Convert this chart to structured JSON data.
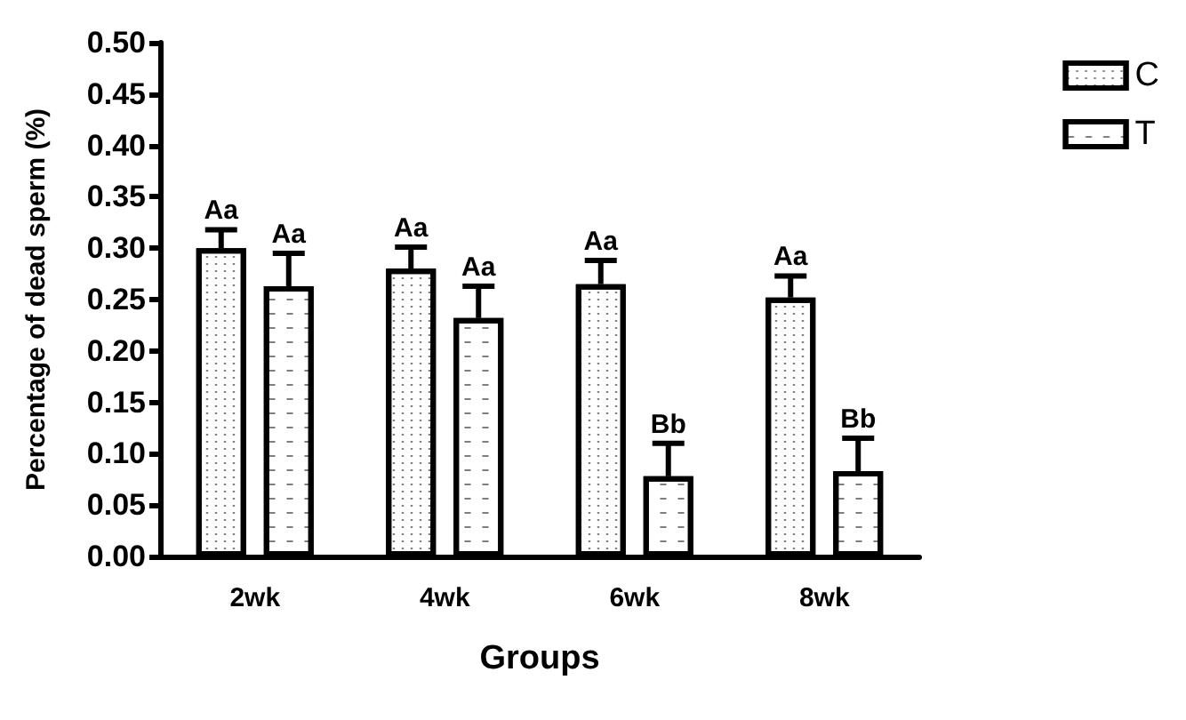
{
  "chart_data": {
    "type": "bar",
    "xlabel": "Groups",
    "ylabel": "Percentage of dead sperm (%)",
    "categories": [
      "2wk",
      "4wk",
      "6wk",
      "8wk"
    ],
    "series": [
      {
        "name": "C",
        "color": "#ffffff",
        "values": [
          0.3,
          0.28,
          0.265,
          0.252
        ],
        "errors": [
          [
            0.3,
            0.318
          ],
          [
            0.28,
            0.301
          ],
          [
            0.265,
            0.288
          ],
          [
            0.252,
            0.273
          ]
        ],
        "value_labels": [
          "Aa",
          "Aa",
          "Aa",
          "Aa"
        ]
      },
      {
        "name": "T",
        "color": "#ffffff",
        "values": [
          0.263,
          0.232,
          0.078,
          0.083
        ],
        "errors": [
          [
            0.263,
            0.295
          ],
          [
            0.232,
            0.263
          ],
          [
            0.078,
            0.11
          ],
          [
            0.083,
            0.115
          ]
        ],
        "value_labels": [
          "Aa",
          "Aa",
          "Bb",
          "Bb"
        ]
      }
    ],
    "ylim": [
      0,
      0.5
    ],
    "yticks": [
      {
        "value": 0,
        "label": "0.00"
      },
      {
        "value": 0.05,
        "label": "0.05"
      },
      {
        "value": 0.1,
        "label": "0.10"
      },
      {
        "value": 0.15,
        "label": "0.15"
      },
      {
        "value": 0.2,
        "label": "0.20"
      },
      {
        "value": 0.25,
        "label": "0.25"
      },
      {
        "value": 0.3,
        "label": "0.30"
      },
      {
        "value": 0.35,
        "label": "0.35"
      },
      {
        "value": 0.4,
        "label": "0.40"
      },
      {
        "value": 0.45,
        "label": "0.45"
      },
      {
        "value": 0.5,
        "label": "0.50"
      }
    ],
    "grid": false,
    "legend": "top right"
  }
}
